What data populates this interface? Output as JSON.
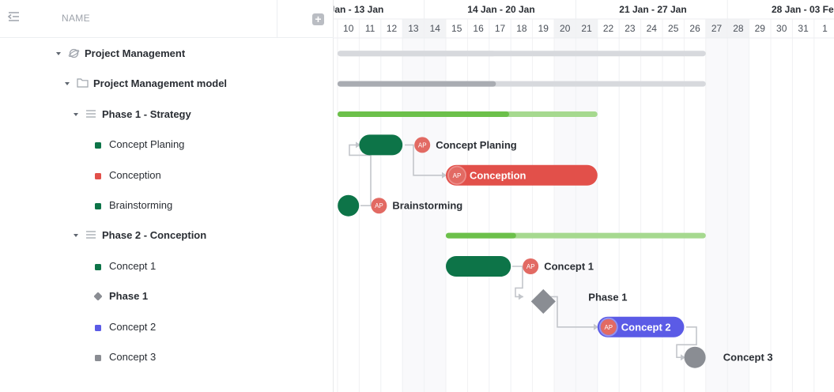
{
  "header": {
    "name_column": "NAME"
  },
  "tree": [
    {
      "label": "Project Management",
      "kind": "space",
      "level": 0,
      "bold": true
    },
    {
      "label": "Project Management model",
      "kind": "folder",
      "level": 1,
      "bold": true
    },
    {
      "label": "Phase 1 - Strategy",
      "kind": "list",
      "level": 2,
      "bold": true
    },
    {
      "label": "Concept Planing",
      "kind": "task",
      "level": 3,
      "color": "#0d7448"
    },
    {
      "label": "Conception",
      "kind": "task",
      "level": 3,
      "color": "#e2504a"
    },
    {
      "label": "Brainstorming",
      "kind": "task",
      "level": 3,
      "color": "#0d7448"
    },
    {
      "label": "Phase 2 - Conception",
      "kind": "list",
      "level": 2,
      "bold": true
    },
    {
      "label": "Concept 1",
      "kind": "task",
      "level": 3,
      "color": "#0d7448"
    },
    {
      "label": "Phase 1",
      "kind": "milestone",
      "level": 3,
      "color": "#8a8d93",
      "bold": true
    },
    {
      "label": "Concept 2",
      "kind": "task",
      "level": 3,
      "color": "#5b5be6"
    },
    {
      "label": "Concept 3",
      "kind": "task",
      "level": 3,
      "color": "#8a8d93"
    }
  ],
  "timeline": {
    "weeks": [
      "Jan - 13 Jan",
      "14 Jan - 20 Jan",
      "21 Jan - 27 Jan",
      "28 Jan - 03 Feb"
    ],
    "days": [
      "10",
      "11",
      "12",
      "13",
      "14",
      "15",
      "16",
      "17",
      "18",
      "19",
      "20",
      "21",
      "22",
      "23",
      "24",
      "25",
      "26",
      "27",
      "28",
      "29",
      "30",
      "31",
      "1"
    ],
    "weekend_days": [
      "13",
      "14",
      "20",
      "21",
      "27",
      "28"
    ],
    "avatar_initials": "AP",
    "avatar_color": "#e26a63",
    "progress_rows": [
      {
        "row": 0,
        "start": "10",
        "end": "26",
        "progress": 0.43,
        "color": "#d7d9dd",
        "done_color": "#d7d9dd",
        "dark": false
      },
      {
        "row": 1,
        "start": "10",
        "end": "26",
        "progress": 0.43,
        "color": "#d7d9dd",
        "done_color": "#a9acb2",
        "dark": true
      },
      {
        "row": 2,
        "start": "10",
        "end": "21",
        "progress": 0.66,
        "color": "#a6d98f",
        "done_color": "#6cc04a",
        "dark": true
      },
      {
        "row": 6,
        "start": "15",
        "end": "26",
        "progress": 0.27,
        "color": "#a6d98f",
        "done_color": "#6cc04a",
        "dark": true
      }
    ],
    "tasks": [
      {
        "row": 3,
        "label": "Concept Planing",
        "start": "11",
        "end": "12",
        "color": "#0d7448",
        "label_inside": false
      },
      {
        "row": 4,
        "label": "Conception",
        "start": "15",
        "end": "21",
        "color": "#e2504a",
        "label_inside": true
      },
      {
        "row": 5,
        "label": "Brainstorming",
        "start": "10",
        "end": "10",
        "color": "#0d7448",
        "label_inside": false
      },
      {
        "row": 7,
        "label": "Concept 1",
        "start": "15",
        "end": "17",
        "color": "#0d7448",
        "label_inside": false
      },
      {
        "row": 9,
        "label": "Concept 2",
        "start": "22",
        "end": "25",
        "color": "#5b5be6",
        "label_inside": true
      },
      {
        "row": 10,
        "label": "Concept 3",
        "start": "26",
        "end": "26",
        "color": "#8a8d93",
        "label_inside": false,
        "no_avatar": true
      }
    ],
    "milestones": [
      {
        "row": 8,
        "label": "Phase 1",
        "day": "19",
        "color": "#8a8d93"
      }
    ]
  }
}
